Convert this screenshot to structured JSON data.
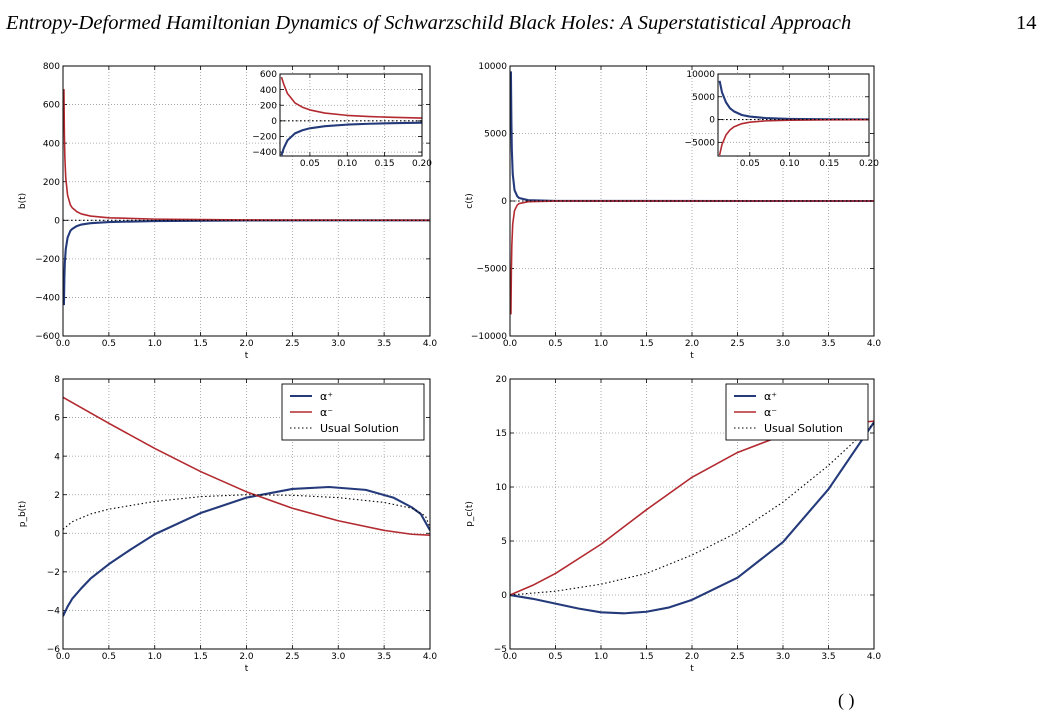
{
  "header": {
    "title": "Entropy-Deformed Hamiltonian Dynamics of Schwarzschild Black Holes: A Superstatistical Approach",
    "page_number": "14"
  },
  "footer": {
    "fragment": "(      )"
  },
  "colors": {
    "alpha_plus": "#243a7a",
    "alpha_minus": "#b22a30",
    "usual": "#000000",
    "grid": "#b5b5b5"
  },
  "chart_data": [
    {
      "id": "b",
      "type": "line",
      "xlabel": "t",
      "ylabel": "b(t)",
      "xlim": [
        0.0,
        4.0
      ],
      "ylim": [
        -600,
        800
      ],
      "xticks": [
        "0.0",
        "0.5",
        "1.0",
        "1.5",
        "2.0",
        "2.5",
        "3.0",
        "3.5",
        "4.0"
      ],
      "yticks": [
        "−600",
        "−400",
        "−200",
        "0",
        "200",
        "400",
        "600",
        "800"
      ],
      "series": [
        {
          "key": "alpha_plus",
          "x": [
            0.01,
            0.015,
            0.02,
            0.03,
            0.05,
            0.08,
            0.1,
            0.15,
            0.2,
            0.3,
            0.5,
            1.0,
            2.0,
            3.0,
            4.0
          ],
          "y": [
            -440,
            -300,
            -220,
            -150,
            -90,
            -55,
            -45,
            -30,
            -22,
            -15,
            -9,
            -4,
            -1,
            -0.3,
            0
          ]
        },
        {
          "key": "alpha_minus",
          "x": [
            0.01,
            0.015,
            0.02,
            0.03,
            0.05,
            0.08,
            0.1,
            0.15,
            0.2,
            0.3,
            0.5,
            1.0,
            2.0,
            3.0,
            4.0
          ],
          "y": [
            680,
            450,
            330,
            220,
            130,
            80,
            65,
            45,
            33,
            22,
            13,
            6,
            2,
            0.5,
            0
          ]
        },
        {
          "key": "usual",
          "x": [
            0.0,
            4.0
          ],
          "y": [
            0,
            0
          ]
        }
      ],
      "inset": {
        "xlim": [
          0.01,
          0.2
        ],
        "ylim": [
          -450,
          600
        ],
        "xticks": [
          "0.05",
          "0.10",
          "0.15",
          "0.20"
        ],
        "yticks": [
          "−400",
          "−200",
          "0",
          "200",
          "400",
          "600"
        ],
        "series": [
          {
            "key": "alpha_plus",
            "x": [
              0.012,
              0.015,
              0.02,
              0.03,
              0.04,
              0.05,
              0.07,
              0.1,
              0.13,
              0.16,
              0.2
            ],
            "y": [
              -440,
              -350,
              -250,
              -160,
              -120,
              -95,
              -68,
              -48,
              -37,
              -30,
              -24
            ]
          },
          {
            "key": "alpha_minus",
            "x": [
              0.012,
              0.015,
              0.02,
              0.03,
              0.04,
              0.05,
              0.07,
              0.1,
              0.13,
              0.16,
              0.2
            ],
            "y": [
              560,
              470,
              350,
              230,
              175,
              140,
              100,
              70,
              55,
              45,
              36
            ]
          },
          {
            "key": "usual",
            "x": [
              0.01,
              0.2
            ],
            "y": [
              0,
              0
            ]
          }
        ]
      }
    },
    {
      "id": "c",
      "type": "line",
      "xlabel": "t",
      "ylabel": "c(t)",
      "xlim": [
        0.0,
        4.0
      ],
      "ylim": [
        -10000,
        10000
      ],
      "xticks": [
        "0.0",
        "0.5",
        "1.0",
        "1.5",
        "2.0",
        "2.5",
        "3.0",
        "3.5",
        "4.0"
      ],
      "yticks": [
        "−10000",
        "−5000",
        "0",
        "5000",
        "10000"
      ],
      "series": [
        {
          "key": "alpha_plus",
          "x": [
            0.01,
            0.015,
            0.02,
            0.03,
            0.05,
            0.08,
            0.1,
            0.2,
            0.5,
            1.0,
            4.0
          ],
          "y": [
            9600,
            6000,
            3800,
            2000,
            800,
            350,
            220,
            60,
            10,
            2,
            0
          ]
        },
        {
          "key": "alpha_minus",
          "x": [
            0.01,
            0.015,
            0.02,
            0.03,
            0.05,
            0.08,
            0.1,
            0.2,
            0.5,
            1.0,
            4.0
          ],
          "y": [
            -8400,
            -5200,
            -3300,
            -1700,
            -700,
            -300,
            -190,
            -50,
            -8,
            -2,
            0
          ]
        },
        {
          "key": "usual",
          "x": [
            0.0,
            4.0
          ],
          "y": [
            0,
            0
          ]
        }
      ],
      "inset": {
        "xlim": [
          0.01,
          0.2
        ],
        "ylim": [
          -8000,
          10000
        ],
        "xticks": [
          "0.05",
          "0.10",
          "0.15",
          "0.20"
        ],
        "yticks": [
          "−5000",
          "0",
          "5000",
          "10000"
        ],
        "series": [
          {
            "key": "alpha_plus",
            "x": [
              0.012,
              0.015,
              0.02,
              0.025,
              0.03,
              0.04,
              0.05,
              0.07,
              0.1,
              0.15,
              0.2
            ],
            "y": [
              8500,
              6000,
              3800,
              2500,
              1800,
              1000,
              650,
              320,
              150,
              60,
              30
            ]
          },
          {
            "key": "alpha_minus",
            "x": [
              0.012,
              0.015,
              0.02,
              0.025,
              0.03,
              0.04,
              0.05,
              0.07,
              0.1,
              0.15,
              0.2
            ],
            "y": [
              -7800,
              -5500,
              -3400,
              -2300,
              -1600,
              -900,
              -580,
              -290,
              -130,
              -50,
              -25
            ]
          },
          {
            "key": "usual",
            "x": [
              0.01,
              0.2
            ],
            "y": [
              0,
              0
            ]
          }
        ]
      }
    },
    {
      "id": "pb",
      "type": "line",
      "xlabel": "t",
      "ylabel": "p_b(t)",
      "xlim": [
        0.0,
        4.0
      ],
      "ylim": [
        -6,
        8
      ],
      "xticks": [
        "0.0",
        "0.5",
        "1.0",
        "1.5",
        "2.0",
        "2.5",
        "3.0",
        "3.5",
        "4.0"
      ],
      "yticks": [
        "−6",
        "−4",
        "−2",
        "0",
        "2",
        "4",
        "6",
        "8"
      ],
      "legend": {
        "placement": "top-right",
        "entries": [
          {
            "key": "alpha_plus",
            "label": "α⁺"
          },
          {
            "key": "alpha_minus",
            "label": "α⁻"
          },
          {
            "key": "usual",
            "label": "Usual Solution"
          }
        ]
      },
      "series": [
        {
          "key": "alpha_plus",
          "x": [
            0.0,
            0.05,
            0.1,
            0.2,
            0.3,
            0.5,
            0.75,
            1.0,
            1.5,
            2.0,
            2.5,
            2.9,
            3.3,
            3.6,
            3.8,
            3.9,
            4.0
          ],
          "y": [
            -4.3,
            -3.8,
            -3.4,
            -2.85,
            -2.35,
            -1.6,
            -0.8,
            -0.05,
            1.05,
            1.85,
            2.3,
            2.4,
            2.25,
            1.85,
            1.35,
            1.0,
            0.15
          ]
        },
        {
          "key": "alpha_minus",
          "x": [
            0.0,
            0.5,
            1.0,
            1.5,
            2.0,
            2.5,
            3.0,
            3.5,
            3.8,
            4.0
          ],
          "y": [
            7.05,
            5.7,
            4.4,
            3.2,
            2.15,
            1.3,
            0.65,
            0.15,
            -0.05,
            -0.1
          ]
        },
        {
          "key": "usual",
          "x": [
            0.0,
            0.1,
            0.3,
            0.5,
            1.0,
            1.5,
            2.0,
            2.5,
            3.0,
            3.5,
            3.8,
            3.95,
            4.0
          ],
          "y": [
            0.2,
            0.6,
            1.0,
            1.25,
            1.65,
            1.9,
            2.0,
            1.97,
            1.85,
            1.6,
            1.3,
            0.9,
            0.3
          ]
        }
      ]
    },
    {
      "id": "pc",
      "type": "line",
      "xlabel": "t",
      "ylabel": "p_c(t)",
      "xlim": [
        0.0,
        4.0
      ],
      "ylim": [
        -5,
        20
      ],
      "xticks": [
        "0.0",
        "0.5",
        "1.0",
        "1.5",
        "2.0",
        "2.5",
        "3.0",
        "3.5",
        "4.0"
      ],
      "yticks": [
        "−5",
        "0",
        "5",
        "10",
        "15",
        "20"
      ],
      "legend": {
        "placement": "top-right",
        "entries": [
          {
            "key": "alpha_plus",
            "label": "α⁺"
          },
          {
            "key": "alpha_minus",
            "label": "α⁻"
          },
          {
            "key": "usual",
            "label": "Usual Solution"
          }
        ]
      },
      "series": [
        {
          "key": "alpha_plus",
          "x": [
            0.0,
            0.25,
            0.5,
            0.75,
            1.0,
            1.25,
            1.5,
            1.75,
            2.0,
            2.5,
            3.0,
            3.5,
            4.0
          ],
          "y": [
            0,
            -0.35,
            -0.8,
            -1.25,
            -1.6,
            -1.7,
            -1.55,
            -1.15,
            -0.45,
            1.6,
            4.9,
            9.8,
            16.0
          ]
        },
        {
          "key": "alpha_minus",
          "x": [
            0.0,
            0.25,
            0.5,
            1.0,
            1.5,
            2.0,
            2.5,
            3.0,
            3.3,
            3.6,
            4.0
          ],
          "y": [
            0,
            0.9,
            2.0,
            4.7,
            7.9,
            10.9,
            13.2,
            14.8,
            15.3,
            15.8,
            16.1
          ]
        },
        {
          "key": "usual",
          "x": [
            0.0,
            0.5,
            1.0,
            1.5,
            2.0,
            2.5,
            3.0,
            3.5,
            4.0
          ],
          "y": [
            0,
            0.35,
            1.0,
            2.0,
            3.7,
            5.8,
            8.6,
            12.0,
            15.9
          ]
        }
      ]
    }
  ]
}
